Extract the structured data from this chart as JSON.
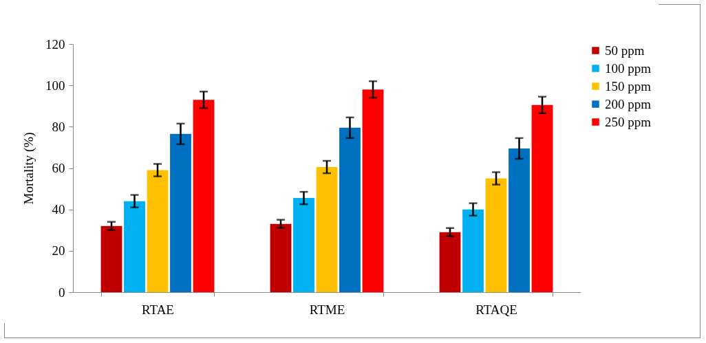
{
  "chart_data": {
    "type": "bar",
    "ylabel": "Mortality (%)",
    "categories": [
      "RTAE",
      "RTME",
      "RTAQE"
    ],
    "series": [
      {
        "name": "50 ppm",
        "color": "#c00000",
        "values": [
          32,
          33,
          29
        ],
        "errors": [
          2,
          2,
          2
        ]
      },
      {
        "name": "100 ppm",
        "color": "#00b0f0",
        "values": [
          44,
          45.5,
          40
        ],
        "errors": [
          3,
          3,
          3
        ]
      },
      {
        "name": "150 ppm",
        "color": "#ffc000",
        "values": [
          59,
          60.5,
          55
        ],
        "errors": [
          3,
          3,
          3
        ]
      },
      {
        "name": "200 ppm",
        "color": "#0070c0",
        "values": [
          76.5,
          79.5,
          69.5
        ],
        "errors": [
          5,
          5,
          5
        ]
      },
      {
        "name": "250 ppm",
        "color": "#ff0000",
        "values": [
          93,
          98,
          90.5
        ],
        "errors": [
          4,
          4,
          4
        ]
      }
    ],
    "ylim": [
      0,
      120
    ],
    "yticks": [
      0,
      20,
      40,
      60,
      80,
      100,
      120
    ],
    "grid": false,
    "legend": "right"
  }
}
